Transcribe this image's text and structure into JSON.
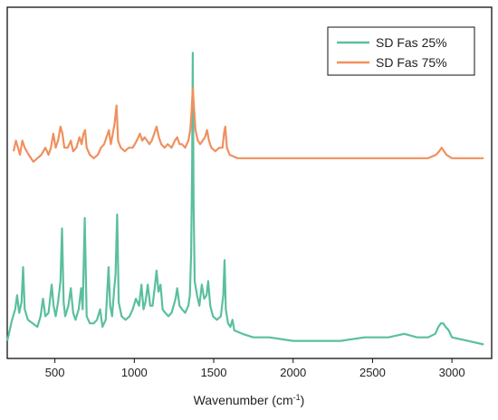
{
  "chart_data": {
    "type": "line",
    "xlabel": "Wavenumber (cm",
    "xlabel_sup": "-1",
    "xlabel_end": ")",
    "ylabel": "",
    "xlim": [
      200,
      3250
    ],
    "ylim": [
      0,
      100
    ],
    "xticks": [
      500,
      1000,
      1500,
      2000,
      2500,
      3000
    ],
    "grid": false,
    "legend_position": "top-right",
    "series": [
      {
        "name": "SD Fas 25%",
        "color": "#5bbf9f",
        "points": [
          [
            200,
            5
          ],
          [
            230,
            11
          ],
          [
            250,
            14
          ],
          [
            262,
            18
          ],
          [
            275,
            13
          ],
          [
            290,
            16
          ],
          [
            300,
            26
          ],
          [
            310,
            14
          ],
          [
            330,
            11
          ],
          [
            360,
            10
          ],
          [
            390,
            9
          ],
          [
            410,
            12
          ],
          [
            425,
            17
          ],
          [
            440,
            12
          ],
          [
            460,
            13
          ],
          [
            480,
            21
          ],
          [
            492,
            15
          ],
          [
            505,
            12
          ],
          [
            520,
            16
          ],
          [
            535,
            22
          ],
          [
            545,
            37
          ],
          [
            555,
            16
          ],
          [
            565,
            12
          ],
          [
            585,
            15
          ],
          [
            600,
            20
          ],
          [
            615,
            13
          ],
          [
            630,
            11
          ],
          [
            650,
            14
          ],
          [
            665,
            20
          ],
          [
            675,
            14
          ],
          [
            688,
            40
          ],
          [
            700,
            12
          ],
          [
            720,
            10
          ],
          [
            745,
            10
          ],
          [
            765,
            11
          ],
          [
            785,
            14
          ],
          [
            800,
            9
          ],
          [
            820,
            11
          ],
          [
            838,
            26
          ],
          [
            848,
            15
          ],
          [
            860,
            12
          ],
          [
            872,
            19
          ],
          [
            882,
            24
          ],
          [
            892,
            41
          ],
          [
            902,
            16
          ],
          [
            920,
            12
          ],
          [
            945,
            11
          ],
          [
            970,
            12
          ],
          [
            990,
            14
          ],
          [
            1010,
            17
          ],
          [
            1030,
            15
          ],
          [
            1045,
            21
          ],
          [
            1058,
            14
          ],
          [
            1070,
            16
          ],
          [
            1085,
            21
          ],
          [
            1100,
            15
          ],
          [
            1115,
            15
          ],
          [
            1128,
            20
          ],
          [
            1140,
            25
          ],
          [
            1152,
            19
          ],
          [
            1165,
            21
          ],
          [
            1178,
            14
          ],
          [
            1195,
            13
          ],
          [
            1215,
            12
          ],
          [
            1235,
            13
          ],
          [
            1260,
            17
          ],
          [
            1270,
            20
          ],
          [
            1285,
            15
          ],
          [
            1300,
            14
          ],
          [
            1320,
            13
          ],
          [
            1340,
            15
          ],
          [
            1350,
            18
          ],
          [
            1358,
            30
          ],
          [
            1364,
            55
          ],
          [
            1368,
            87
          ],
          [
            1373,
            45
          ],
          [
            1380,
            22
          ],
          [
            1395,
            18
          ],
          [
            1410,
            15
          ],
          [
            1425,
            21
          ],
          [
            1440,
            17
          ],
          [
            1455,
            18
          ],
          [
            1465,
            22
          ],
          [
            1478,
            15
          ],
          [
            1495,
            12
          ],
          [
            1520,
            11
          ],
          [
            1545,
            12
          ],
          [
            1560,
            18
          ],
          [
            1568,
            28
          ],
          [
            1576,
            14
          ],
          [
            1590,
            10
          ],
          [
            1605,
            9
          ],
          [
            1618,
            11
          ],
          [
            1630,
            8
          ],
          [
            1680,
            7
          ],
          [
            1750,
            6
          ],
          [
            1850,
            6
          ],
          [
            2000,
            5
          ],
          [
            2150,
            5
          ],
          [
            2300,
            5
          ],
          [
            2450,
            6
          ],
          [
            2600,
            6
          ],
          [
            2700,
            7
          ],
          [
            2780,
            6
          ],
          [
            2850,
            6
          ],
          [
            2895,
            7
          ],
          [
            2915,
            9
          ],
          [
            2930,
            10
          ],
          [
            2945,
            10
          ],
          [
            2960,
            9
          ],
          [
            2980,
            8
          ],
          [
            3000,
            6
          ],
          [
            3100,
            5
          ],
          [
            3200,
            4
          ]
        ]
      },
      {
        "name": "SD Fas 75%",
        "color": "#f0905f",
        "points": [
          [
            240,
            59
          ],
          [
            255,
            62
          ],
          [
            268,
            60
          ],
          [
            280,
            58
          ],
          [
            295,
            62
          ],
          [
            310,
            60
          ],
          [
            335,
            58
          ],
          [
            365,
            56
          ],
          [
            390,
            57
          ],
          [
            415,
            58
          ],
          [
            440,
            60
          ],
          [
            460,
            58
          ],
          [
            475,
            60
          ],
          [
            490,
            64
          ],
          [
            505,
            60
          ],
          [
            520,
            62
          ],
          [
            535,
            66
          ],
          [
            548,
            64
          ],
          [
            560,
            60
          ],
          [
            580,
            60
          ],
          [
            600,
            62
          ],
          [
            615,
            59
          ],
          [
            635,
            60
          ],
          [
            655,
            63
          ],
          [
            668,
            61
          ],
          [
            680,
            64
          ],
          [
            690,
            65
          ],
          [
            700,
            60
          ],
          [
            720,
            58
          ],
          [
            745,
            57
          ],
          [
            770,
            58
          ],
          [
            790,
            60
          ],
          [
            810,
            61
          ],
          [
            825,
            63
          ],
          [
            840,
            65
          ],
          [
            852,
            61
          ],
          [
            865,
            64
          ],
          [
            876,
            67
          ],
          [
            888,
            72
          ],
          [
            898,
            62
          ],
          [
            915,
            60
          ],
          [
            940,
            59
          ],
          [
            965,
            60
          ],
          [
            990,
            60
          ],
          [
            1015,
            62
          ],
          [
            1035,
            64
          ],
          [
            1050,
            62
          ],
          [
            1065,
            63
          ],
          [
            1080,
            62
          ],
          [
            1095,
            61
          ],
          [
            1110,
            62
          ],
          [
            1125,
            64
          ],
          [
            1140,
            66
          ],
          [
            1155,
            63
          ],
          [
            1170,
            61
          ],
          [
            1190,
            60
          ],
          [
            1210,
            61
          ],
          [
            1235,
            60
          ],
          [
            1255,
            62
          ],
          [
            1270,
            63
          ],
          [
            1285,
            61
          ],
          [
            1300,
            61
          ],
          [
            1320,
            60
          ],
          [
            1340,
            62
          ],
          [
            1352,
            65
          ],
          [
            1360,
            70
          ],
          [
            1368,
            77
          ],
          [
            1375,
            72
          ],
          [
            1385,
            65
          ],
          [
            1400,
            62
          ],
          [
            1415,
            61
          ],
          [
            1430,
            62
          ],
          [
            1445,
            63
          ],
          [
            1458,
            65
          ],
          [
            1470,
            62
          ],
          [
            1485,
            60
          ],
          [
            1510,
            59
          ],
          [
            1535,
            60
          ],
          [
            1555,
            60
          ],
          [
            1565,
            64
          ],
          [
            1573,
            66
          ],
          [
            1583,
            60
          ],
          [
            1600,
            58
          ],
          [
            1650,
            57
          ],
          [
            1750,
            57
          ],
          [
            1850,
            57
          ],
          [
            2000,
            57
          ],
          [
            2150,
            57
          ],
          [
            2300,
            57
          ],
          [
            2450,
            57
          ],
          [
            2600,
            57
          ],
          [
            2750,
            57
          ],
          [
            2850,
            57
          ],
          [
            2900,
            58
          ],
          [
            2920,
            59
          ],
          [
            2935,
            60
          ],
          [
            2950,
            59
          ],
          [
            2965,
            58
          ],
          [
            3000,
            57
          ],
          [
            3100,
            57
          ],
          [
            3200,
            57
          ]
        ]
      }
    ]
  }
}
